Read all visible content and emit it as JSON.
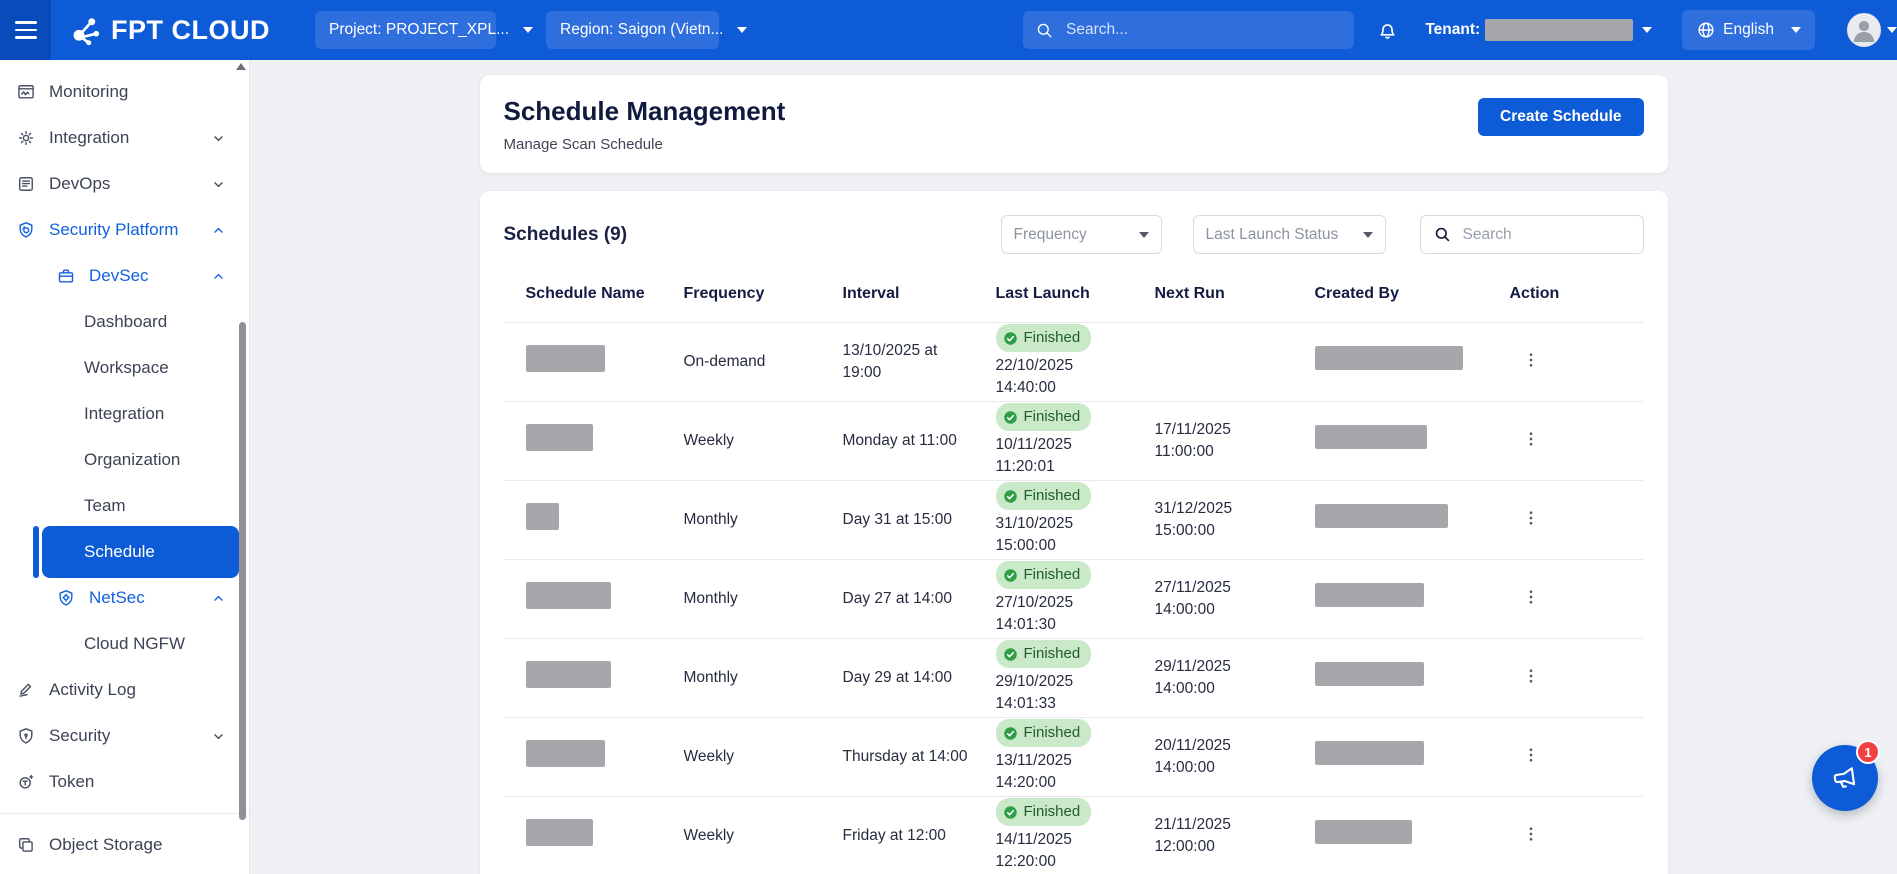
{
  "colors": {
    "accent": "#0d5bd7",
    "topbar_dark": "#0a4bbb",
    "topbar_light": "#2f6fdd",
    "link_blue": "#1161de",
    "badge_bg": "#c9e9c9",
    "badge_text": "#235c2d",
    "badge_check": "#2f9e44",
    "redact": "#a6a7ab",
    "fab_badge": "#f24141"
  },
  "topbar": {
    "logo_text": "FPT CLOUD",
    "project_label": "Project: PROJECT_XPL...",
    "region_label": "Region: Saigon (Vietn...",
    "search_placeholder": "Search...",
    "tenant_label": "Tenant:",
    "language_label": "English"
  },
  "sidebar": {
    "items": [
      {
        "label": "Monitoring",
        "icon": "monitoring-icon",
        "level": 0
      },
      {
        "label": "Integration",
        "icon": "integration-icon",
        "level": 0,
        "chevron": "down"
      },
      {
        "label": "DevOps",
        "icon": "devops-icon",
        "level": 0,
        "chevron": "down"
      },
      {
        "label": "Security Platform",
        "icon": "security-platform-icon",
        "level": 0,
        "chevron": "up",
        "blue": true
      },
      {
        "label": "DevSec",
        "icon": "devsec-icon",
        "level": 1,
        "chevron": "up",
        "blue": true
      },
      {
        "label": "Dashboard",
        "level": 2
      },
      {
        "label": "Workspace",
        "level": 2
      },
      {
        "label": "Integration",
        "level": 2
      },
      {
        "label": "Organization",
        "level": 2
      },
      {
        "label": "Team",
        "level": 2
      },
      {
        "label": "Schedule",
        "level": 2,
        "selected": true
      },
      {
        "label": "NetSec",
        "icon": "netsec-icon",
        "level": 1,
        "chevron": "up",
        "blue": true
      },
      {
        "label": "Cloud NGFW",
        "level": 2
      },
      {
        "label": "Activity Log",
        "icon": "activity-log-icon",
        "level": 0
      },
      {
        "label": "Security",
        "icon": "security-icon",
        "level": 0,
        "chevron": "down"
      },
      {
        "label": "Token",
        "icon": "token-icon",
        "level": 0
      },
      {
        "divider": true
      },
      {
        "label": "Object Storage",
        "icon": "object-storage-icon",
        "level": 0
      }
    ]
  },
  "page": {
    "title": "Schedule Management",
    "subtitle": "Manage Scan Schedule",
    "create_button": "Create Schedule"
  },
  "filters": {
    "section_title": "Schedules (9)",
    "frequency_placeholder": "Frequency",
    "status_placeholder": "Last Launch Status",
    "search_placeholder": "Search"
  },
  "table": {
    "columns": [
      "Schedule Name",
      "Frequency",
      "Interval",
      "Last Launch",
      "Next Run",
      "Created By",
      "Action"
    ],
    "rows": [
      {
        "frequency": "On-demand",
        "interval": "13/10/2025 at 19:00",
        "status": "Finished",
        "last_launch": "22/10/2025\n14:40:00",
        "next_run": "",
        "name_w": 79,
        "created_w": 148
      },
      {
        "frequency": "Weekly",
        "interval": "Monday at 11:00",
        "status": "Finished",
        "last_launch": "10/11/2025\n11:20:01",
        "next_run": "17/11/2025\n11:00:00",
        "name_w": 67,
        "created_w": 112
      },
      {
        "frequency": "Monthly",
        "interval": "Day 31 at 15:00",
        "status": "Finished",
        "last_launch": "31/10/2025\n15:00:00",
        "next_run": "31/12/2025\n15:00:00",
        "name_w": 33,
        "created_w": 133
      },
      {
        "frequency": "Monthly",
        "interval": "Day 27 at 14:00",
        "status": "Finished",
        "last_launch": "27/10/2025\n14:01:30",
        "next_run": "27/11/2025\n14:00:00",
        "name_w": 85,
        "created_w": 109
      },
      {
        "frequency": "Monthly",
        "interval": "Day 29 at 14:00",
        "status": "Finished",
        "last_launch": "29/10/2025\n14:01:33",
        "next_run": "29/11/2025\n14:00:00",
        "name_w": 85,
        "created_w": 109
      },
      {
        "frequency": "Weekly",
        "interval": "Thursday at 14:00",
        "status": "Finished",
        "last_launch": "13/11/2025\n14:20:00",
        "next_run": "20/11/2025\n14:00:00",
        "name_w": 79,
        "created_w": 109
      },
      {
        "frequency": "Weekly",
        "interval": "Friday at 12:00",
        "status": "Finished",
        "last_launch": "14/11/2025\n12:20:00",
        "next_run": "21/11/2025\n12:00:00",
        "name_w": 67,
        "created_w": 97
      }
    ]
  },
  "fab": {
    "badge": "1"
  }
}
